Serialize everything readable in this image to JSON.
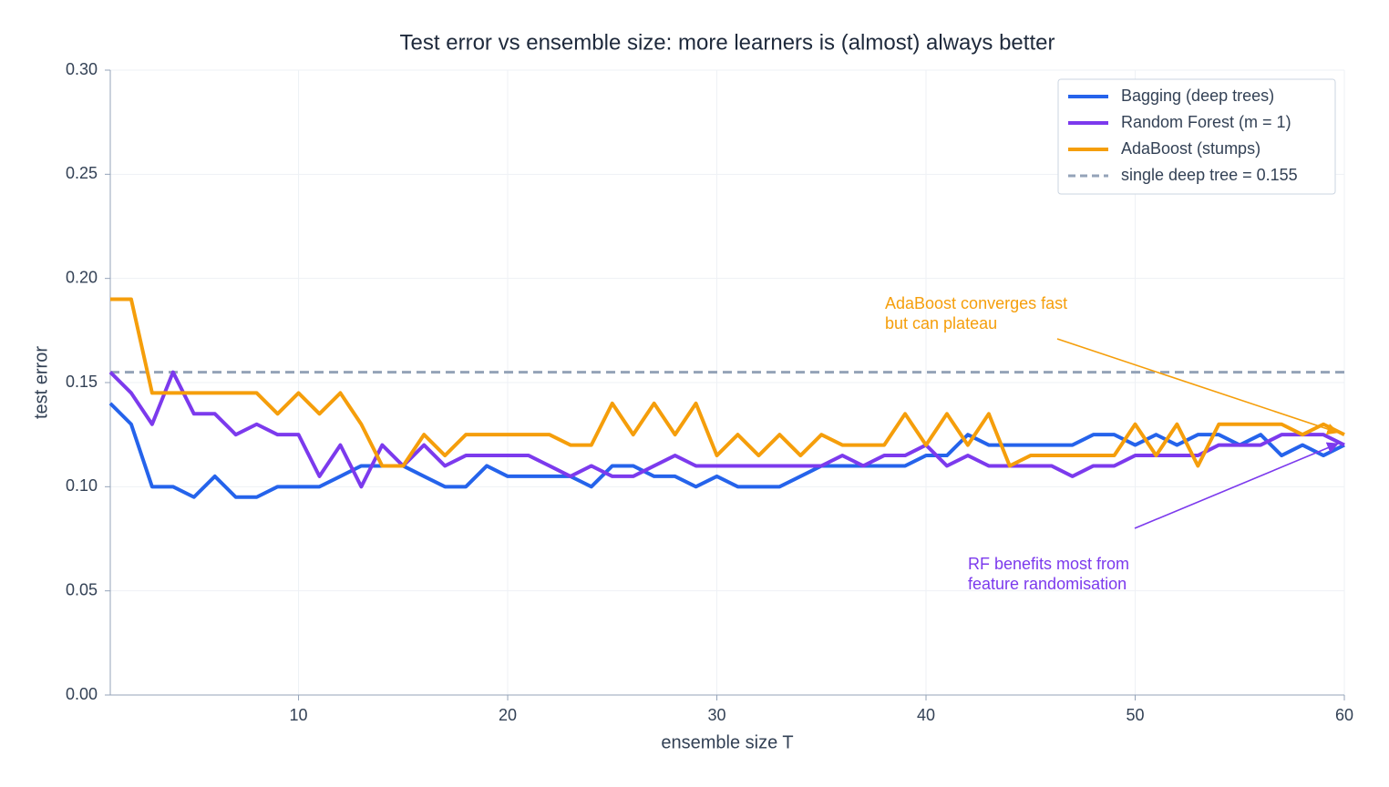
{
  "chart_data": {
    "type": "line",
    "title": "Test error vs ensemble size: more learners is (almost) always better",
    "xlabel": "ensemble size T",
    "ylabel": "test error",
    "x": [
      1,
      2,
      3,
      4,
      5,
      6,
      7,
      8,
      9,
      10,
      11,
      12,
      13,
      14,
      15,
      16,
      17,
      18,
      19,
      20,
      21,
      22,
      23,
      24,
      25,
      26,
      27,
      28,
      29,
      30,
      31,
      32,
      33,
      34,
      35,
      36,
      37,
      38,
      39,
      40,
      41,
      42,
      43,
      44,
      45,
      46,
      47,
      48,
      49,
      50,
      51,
      52,
      53,
      54,
      55,
      56,
      57,
      58,
      59,
      60
    ],
    "series": [
      {
        "name": "Bagging (deep trees)",
        "color": "#2563eb",
        "values": [
          0.14,
          0.13,
          0.1,
          0.1,
          0.095,
          0.105,
          0.095,
          0.095,
          0.1,
          0.1,
          0.1,
          0.105,
          0.11,
          0.11,
          0.11,
          0.105,
          0.1,
          0.1,
          0.11,
          0.105,
          0.105,
          0.105,
          0.105,
          0.1,
          0.11,
          0.11,
          0.105,
          0.105,
          0.1,
          0.105,
          0.1,
          0.1,
          0.1,
          0.105,
          0.11,
          0.11,
          0.11,
          0.11,
          0.11,
          0.115,
          0.115,
          0.125,
          0.12,
          0.12,
          0.12,
          0.12,
          0.12,
          0.125,
          0.125,
          0.12,
          0.125,
          0.12,
          0.125,
          0.125,
          0.12,
          0.125,
          0.115,
          0.12,
          0.115,
          0.12
        ]
      },
      {
        "name": "Random Forest (m = 1)",
        "color": "#7c3aed",
        "values": [
          0.155,
          0.145,
          0.13,
          0.155,
          0.135,
          0.135,
          0.125,
          0.13,
          0.125,
          0.125,
          0.105,
          0.12,
          0.1,
          0.12,
          0.11,
          0.12,
          0.11,
          0.115,
          0.115,
          0.115,
          0.115,
          0.11,
          0.105,
          0.11,
          0.105,
          0.105,
          0.11,
          0.115,
          0.11,
          0.11,
          0.11,
          0.11,
          0.11,
          0.11,
          0.11,
          0.115,
          0.11,
          0.115,
          0.115,
          0.12,
          0.11,
          0.115,
          0.11,
          0.11,
          0.11,
          0.11,
          0.105,
          0.11,
          0.11,
          0.115,
          0.115,
          0.115,
          0.115,
          0.12,
          0.12,
          0.12,
          0.125,
          0.125,
          0.125,
          0.12
        ]
      },
      {
        "name": "AdaBoost (stumps)",
        "color": "#f59e0b",
        "values": [
          0.19,
          0.19,
          0.145,
          0.145,
          0.145,
          0.145,
          0.145,
          0.145,
          0.135,
          0.145,
          0.135,
          0.145,
          0.13,
          0.11,
          0.11,
          0.125,
          0.115,
          0.125,
          0.125,
          0.125,
          0.125,
          0.125,
          0.12,
          0.12,
          0.14,
          0.125,
          0.14,
          0.125,
          0.14,
          0.115,
          0.125,
          0.115,
          0.125,
          0.115,
          0.125,
          0.12,
          0.12,
          0.12,
          0.135,
          0.12,
          0.135,
          0.12,
          0.135,
          0.11,
          0.115,
          0.115,
          0.115,
          0.115,
          0.115,
          0.13,
          0.115,
          0.13,
          0.11,
          0.13,
          0.13,
          0.13,
          0.13,
          0.125,
          0.13,
          0.125
        ]
      }
    ],
    "hline": {
      "name": "single deep tree = 0.155",
      "value": 0.155,
      "color": "#94a3b8"
    },
    "annotations": [
      {
        "lines": [
          "AdaBoost converges fast",
          "but can plateau"
        ],
        "color": "#f59e0b",
        "xy": [
          60,
          0.125
        ]
      },
      {
        "lines": [
          "RF benefits most from",
          "feature randomisation"
        ],
        "color": "#7c3aed",
        "xy": [
          60,
          0.12
        ]
      }
    ],
    "xlim": [
      1,
      60
    ],
    "xticks": [
      10,
      20,
      30,
      40,
      50,
      60
    ],
    "ylim": [
      0,
      0.3
    ],
    "yticks": [
      {
        "value": 0,
        "label": "0.00"
      },
      {
        "value": 0.05,
        "label": "0.05"
      },
      {
        "value": 0.1,
        "label": "0.10"
      },
      {
        "value": 0.15,
        "label": "0.15"
      },
      {
        "value": 0.2,
        "label": "0.20"
      },
      {
        "value": 0.25,
        "label": "0.25"
      },
      {
        "value": 0.3,
        "label": "0.30"
      }
    ],
    "grid": true,
    "legend": "upper right"
  }
}
